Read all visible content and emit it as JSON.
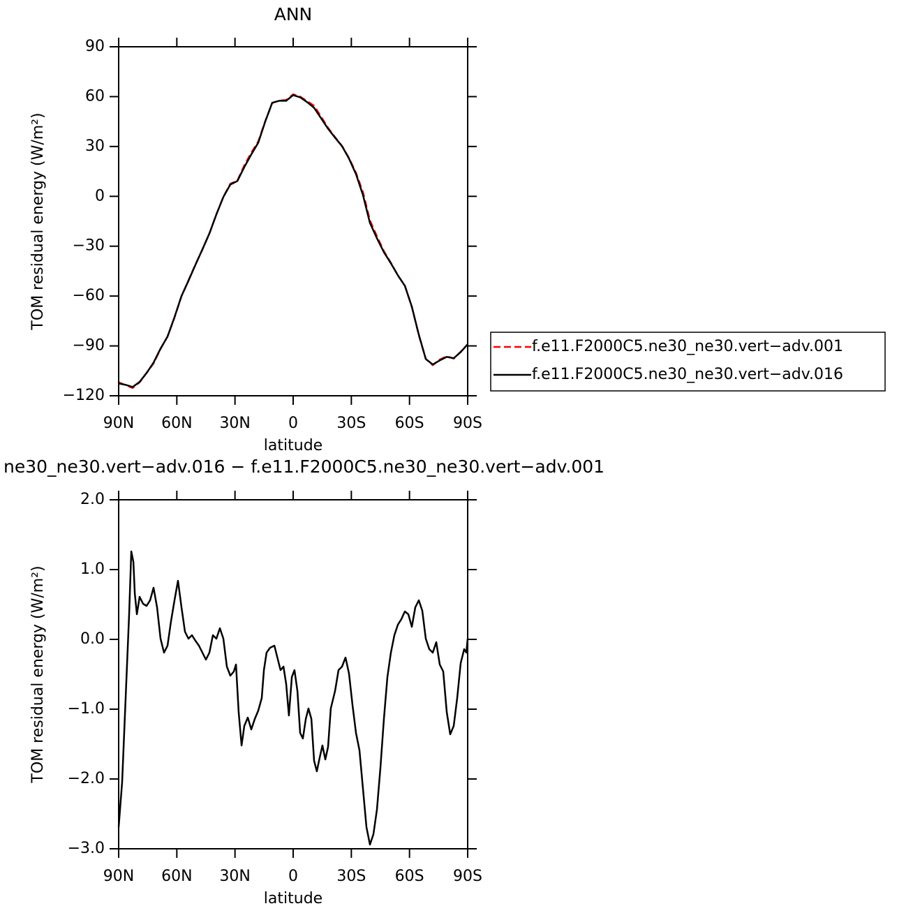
{
  "chart_data": [
    {
      "type": "line",
      "title": "ANN",
      "x_label": "latitude",
      "y_label": "TOM residual energy (W/m²)",
      "xlim": [
        90,
        -90
      ],
      "xticks": [
        {
          "value": 90,
          "label": "90N"
        },
        {
          "value": 60,
          "label": "60N"
        },
        {
          "value": 30,
          "label": "30N"
        },
        0,
        {
          "value": -30,
          "label": "30S"
        },
        {
          "value": -60,
          "label": "60S"
        },
        {
          "value": -90,
          "label": "90S"
        }
      ],
      "ylim": [
        -120,
        90
      ],
      "yticks": [
        {
          "value": -120,
          "label": "−120"
        },
        {
          "value": -90,
          "label": "−90"
        },
        {
          "value": -60,
          "label": "−60"
        },
        {
          "value": -30,
          "label": "−30"
        },
        0,
        30,
        60,
        90
      ],
      "legend": "right",
      "x": [
        90,
        86.4,
        82.8,
        79.2,
        75.6,
        72,
        68.4,
        64.8,
        61.2,
        57.6,
        54,
        50.4,
        46.8,
        43.2,
        39.6,
        36,
        32.4,
        28.8,
        25.2,
        21.6,
        18,
        14.4,
        10.8,
        7.2,
        3.6,
        0,
        -3.6,
        -7.2,
        -10.8,
        -14.4,
        -18,
        -21.6,
        -25.2,
        -28.8,
        -32.4,
        -36,
        -39.6,
        -43.2,
        -46.8,
        -50.4,
        -54,
        -57.6,
        -61.2,
        -64.8,
        -68.4,
        -72,
        -75.6,
        -79.2,
        -82.8,
        -86.4,
        -90
      ],
      "series": [
        {
          "name": "f.e11.F2000C5.ne30_ne30.vert−adv.001",
          "color": "#ff0000",
          "dashed": true,
          "values": [
            -111.9,
            -113.6,
            -115.3,
            -111.9,
            -106.2,
            -100.5,
            -91.8,
            -84.3,
            -72.9,
            -60.1,
            -50.6,
            -41.0,
            -32.0,
            -22.4,
            -10.8,
            -0.3,
            7.6,
            9.4,
            18.6,
            26.3,
            33.0,
            45.2,
            56.2,
            57.6,
            58.0,
            61.4,
            60.0,
            57.3,
            54.5,
            48.0,
            41.2,
            35.6,
            30.3,
            23.0,
            14.2,
            2.5,
            -14.5,
            -24.0,
            -33.0,
            -40.0,
            -47.6,
            -53.7,
            -66.5,
            -83.5,
            -97.8,
            -101.6,
            -98.2,
            -96.2,
            -97.6,
            -93.5,
            -89.0
          ]
        },
        {
          "name": "f.e11.F2000C5.ne30_ne30.vert−adv.016",
          "color": "#000000",
          "dashed": false,
          "values": [
            -112.6,
            -113.4,
            -114.7,
            -111.7,
            -106.3,
            -100,
            -91.6,
            -84.4,
            -72.7,
            -60,
            -50.8,
            -41.2,
            -31.9,
            -22.3,
            -10.9,
            -0.4,
            7.1,
            9.2,
            17.6,
            25.2,
            32.3,
            45,
            56.3,
            57.5,
            57.5,
            60.9,
            59.6,
            56.7,
            53.3,
            47,
            40.7,
            35.3,
            30.2,
            22.7,
            13.4,
            0.8,
            -16,
            -25.2,
            -33.6,
            -40.3,
            -47.5,
            -53.8,
            -66.4,
            -83.2,
            -97.9,
            -101.2,
            -98.7,
            -96.6,
            -97.4,
            -93.7,
            -89
          ]
        }
      ]
    },
    {
      "type": "line",
      "title": "ne30_ne30.vert−adv.016 − f.e11.F2000C5.ne30_ne30.vert−adv.001",
      "x_label": "latitude",
      "y_label": "TOM residual energy (W/m²)",
      "xlim": [
        90,
        -90
      ],
      "xticks": [
        {
          "value": 90,
          "label": "90N"
        },
        {
          "value": 60,
          "label": "60N"
        },
        {
          "value": 30,
          "label": "30N"
        },
        0,
        {
          "value": -30,
          "label": "30S"
        },
        {
          "value": -60,
          "label": "60S"
        },
        {
          "value": -90,
          "label": "90S"
        }
      ],
      "ylim": [
        -3,
        2
      ],
      "yticks": [
        {
          "value": -3,
          "label": "−3.0"
        },
        {
          "value": -2,
          "label": "−2.0"
        },
        {
          "value": -1,
          "label": "−1.0"
        },
        {
          "value": 0,
          "label": "0.0"
        },
        {
          "value": 1,
          "label": "1.0"
        },
        {
          "value": 2,
          "label": "2.0"
        }
      ],
      "x": [
        90,
        88.2,
        86.4,
        84.6,
        83.5,
        82.4,
        81.7,
        80.6,
        79.2,
        77.4,
        75.6,
        73.8,
        72,
        70.2,
        68.4,
        66.6,
        64.8,
        63,
        61.2,
        59.4,
        57.6,
        55.8,
        54,
        52.2,
        50.4,
        48.6,
        46.8,
        45,
        43.2,
        41.4,
        39.6,
        37.8,
        36,
        34.2,
        32.4,
        30.6,
        29.5,
        28.1,
        26.6,
        25.2,
        23.4,
        21.6,
        19.8,
        18,
        16.2,
        15.1,
        13.7,
        11.9,
        9.7,
        7.9,
        6.5,
        5,
        3.6,
        2.2,
        0.7,
        -0.7,
        -2.2,
        -3.6,
        -5,
        -6.5,
        -7.9,
        -9.4,
        -10.8,
        -12.2,
        -13.7,
        -15.1,
        -16.6,
        -18,
        -19.4,
        -21.6,
        -23.4,
        -25.2,
        -27,
        -28.8,
        -30.6,
        -32.4,
        -34.2,
        -36,
        -37.8,
        -39.6,
        -41.4,
        -43.2,
        -45,
        -46.8,
        -48.6,
        -50.4,
        -52.2,
        -54,
        -55.8,
        -57.6,
        -59.4,
        -61.2,
        -63,
        -64.8,
        -66.6,
        -68.4,
        -70.2,
        -72,
        -73.8,
        -75.6,
        -77.4,
        -79.2,
        -81,
        -82.8,
        -84.6,
        -86.4,
        -88.2,
        -89.3,
        -90
      ],
      "series": [
        {
          "color": "#000000",
          "dashed": false,
          "values": [
            -2.69,
            -2.04,
            -0.84,
            0.36,
            1.26,
            1.11,
            0.66,
            0.36,
            0.61,
            0.51,
            0.48,
            0.56,
            0.74,
            0.46,
            0.01,
            -0.19,
            -0.09,
            0.26,
            0.56,
            0.84,
            0.46,
            0.11,
            0.01,
            0.06,
            -0.02,
            -0.09,
            -0.19,
            -0.29,
            -0.19,
            0.06,
            0.01,
            0.16,
            0.01,
            -0.39,
            -0.52,
            -0.46,
            -0.36,
            -1.04,
            -1.52,
            -1.24,
            -1.12,
            -1.29,
            -1.14,
            -1.02,
            -0.84,
            -0.44,
            -0.19,
            -0.12,
            -0.09,
            -0.29,
            -0.44,
            -0.39,
            -0.64,
            -1.09,
            -0.54,
            -0.44,
            -0.74,
            -1.34,
            -1.42,
            -1.14,
            -0.99,
            -1.14,
            -1.74,
            -1.89,
            -1.69,
            -1.52,
            -1.72,
            -1.54,
            -0.99,
            -0.74,
            -0.44,
            -0.39,
            -0.26,
            -0.49,
            -0.94,
            -1.34,
            -1.59,
            -2.14,
            -2.69,
            -2.94,
            -2.79,
            -2.44,
            -1.84,
            -1.14,
            -0.54,
            -0.19,
            0.06,
            0.21,
            0.29,
            0.4,
            0.36,
            0.18,
            0.46,
            0.56,
            0.41,
            0.01,
            -0.14,
            -0.19,
            -0.04,
            -0.36,
            -0.46,
            -1.04,
            -1.36,
            -1.24,
            -0.84,
            -0.34,
            -0.14,
            -0.19,
            0.01
          ]
        }
      ]
    }
  ]
}
